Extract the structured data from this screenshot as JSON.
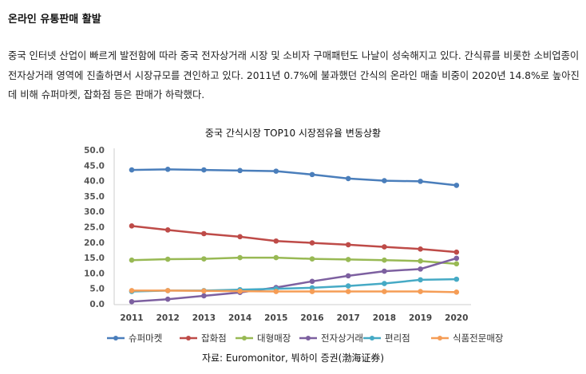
{
  "heading": "온라인 유통판매 활발",
  "paragraph": "중국 인터넷 산업이 빠르게 발전함에 따라 중국 전자상거래 시장 및 소비자 구매패턴도 나날이 성숙해지고 있다. 간식류를 비롯한 소비업종이 전자상거래 영역에 진출하면서 시장규모를 견인하고 있다. 2011년 0.7%에 불과했던 간식의 온라인 매출 비중이 2020년 14.8%로 높아진 데 비해 슈퍼마켓, 잡화점 등은 판매가 하락했다.",
  "source": "자료: Euromonitor, 붜하이 증권(渤海证券)",
  "chart_data": {
    "type": "line",
    "title": "중국 간식시장 TOP10 시장점유율 변동상황",
    "x": [
      "2011",
      "2012",
      "2013",
      "2014",
      "2015",
      "2016",
      "2017",
      "2018",
      "2019",
      "2020"
    ],
    "ylim": [
      0,
      50
    ],
    "yticks": [
      "0.0",
      "5.0",
      "10.0",
      "15.0",
      "20.0",
      "25.0",
      "30.0",
      "35.0",
      "40.0",
      "45.0",
      "50.0"
    ],
    "legend_position": "bottom",
    "series": [
      {
        "name": "슈퍼마켓",
        "color": "#4a7ebb",
        "values": [
          43.5,
          43.7,
          43.5,
          43.3,
          43.1,
          42.0,
          40.7,
          40.0,
          39.8,
          38.5
        ]
      },
      {
        "name": "잡화점",
        "color": "#be4b48",
        "values": [
          25.3,
          24.0,
          22.8,
          21.8,
          20.4,
          19.8,
          19.2,
          18.5,
          17.8,
          16.8
        ]
      },
      {
        "name": "대형매장",
        "color": "#98b954",
        "values": [
          14.2,
          14.5,
          14.6,
          15.0,
          15.0,
          14.6,
          14.4,
          14.2,
          13.9,
          13.0
        ]
      },
      {
        "name": "전자상거래",
        "color": "#7d60a0",
        "values": [
          0.7,
          1.5,
          2.6,
          3.7,
          5.3,
          7.3,
          9.1,
          10.6,
          11.3,
          14.8
        ]
      },
      {
        "name": "편리점",
        "color": "#46aac5",
        "values": [
          4.0,
          4.3,
          4.3,
          4.6,
          4.9,
          5.2,
          5.8,
          6.6,
          7.8,
          8.0
        ]
      },
      {
        "name": "식품전문매장",
        "color": "#f59d56",
        "values": [
          4.3,
          4.3,
          4.2,
          4.1,
          4.0,
          4.0,
          4.0,
          4.0,
          4.0,
          3.8
        ]
      }
    ]
  }
}
